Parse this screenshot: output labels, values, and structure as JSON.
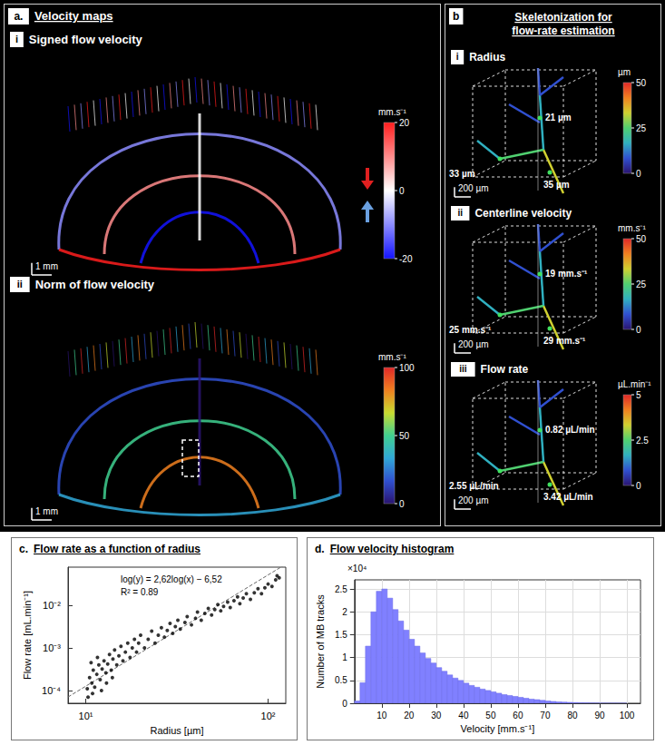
{
  "panels": {
    "a": {
      "label": "a.",
      "title": "Velocity maps",
      "maps": [
        {
          "label": "i",
          "title": "Signed flow velocity",
          "scale_bar": "1 mm",
          "colorbar": {
            "unit": "mm.s⁻¹",
            "range": [
              -20,
              20
            ],
            "ticks": [
              20,
              0,
              -20
            ],
            "colors": [
              "#1414ff",
              "#8c8cff",
              "#ffffff",
              "#ff8c8c",
              "#ff1e1e"
            ]
          }
        },
        {
          "label": "ii",
          "title": "Norm of flow velocity",
          "scale_bar": "1 mm",
          "colorbar": {
            "unit": "mm.s⁻¹",
            "range": [
              0,
              100
            ],
            "ticks": [
              0,
              50,
              100
            ],
            "colors": [
              "#2a1470",
              "#3050d0",
              "#30a8d8",
              "#40d090",
              "#c8dc30",
              "#f08020",
              "#e02828"
            ]
          }
        }
      ]
    },
    "b": {
      "label": "b",
      "title": "Skeletonization for flow-rate estimation",
      "views": [
        {
          "label": "i",
          "title": "Radius",
          "scale_bar": "200 µm",
          "annotations": [
            "21 µm",
            "33 µm",
            "35 µm"
          ],
          "colorbar": {
            "unit": "µm",
            "range": [
              0,
              50
            ],
            "ticks": [
              0,
              25,
              50
            ],
            "colors": [
              "#2a1470",
              "#3050d0",
              "#30b0c0",
              "#50d070",
              "#d0d030",
              "#f08020",
              "#e02828"
            ]
          }
        },
        {
          "label": "ii",
          "title": "Centerline velocity",
          "scale_bar": "200 µm",
          "annotations": [
            "19 mm.s⁻¹",
            "25 mm.s⁻¹",
            "29 mm.s⁻¹"
          ],
          "colorbar": {
            "unit": "mm.s⁻¹",
            "range": [
              0,
              50
            ],
            "ticks": [
              0,
              25,
              50
            ],
            "colors": [
              "#2a1470",
              "#3050d0",
              "#30b0c0",
              "#50d070",
              "#d0d030",
              "#f08020",
              "#e02828"
            ]
          }
        },
        {
          "label": "iii",
          "title": "Flow rate",
          "scale_bar": "200 µm",
          "annotations": [
            "0.82 µL/min",
            "2.55 µL/min",
            "3.42 µL/min"
          ],
          "colorbar": {
            "unit": "µL.min⁻¹",
            "range": [
              0,
              5
            ],
            "ticks": [
              0,
              2.5,
              5
            ],
            "colors": [
              "#2a1470",
              "#3050d0",
              "#30b0c0",
              "#50d070",
              "#d0d030",
              "#f08020",
              "#e02828"
            ]
          }
        }
      ]
    }
  },
  "chart_data": [
    {
      "type": "scatter",
      "label": "c.",
      "title": "Flow rate as a function of radius",
      "x_label": "Radius [µm]",
      "y_label": "Flow rate [mL.min⁻¹]",
      "log": true,
      "grid": false,
      "xlim": [
        8,
        125
      ],
      "ylim": [
        5e-05,
        0.08
      ],
      "xticks": [
        {
          "value": 10,
          "label": "10¹"
        },
        {
          "value": 100,
          "label": "10²"
        }
      ],
      "yticks": [
        {
          "value": 0.0001,
          "label": "10⁻⁴"
        },
        {
          "value": 0.001,
          "label": "10⁻³"
        },
        {
          "value": 0.01,
          "label": "10⁻²"
        }
      ],
      "color": "#000000",
      "marker": "circle",
      "x": [
        10.2,
        10.5,
        10.8,
        11,
        11.2,
        11.5,
        11.8,
        12,
        12.3,
        12.6,
        12.9,
        13.2,
        13.5,
        13.8,
        14.1,
        14.4,
        14.8,
        15.2,
        15.6,
        16,
        16.5,
        17,
        17.5,
        18,
        18.5,
        19,
        19.5,
        20,
        21,
        22,
        23,
        24,
        25,
        26,
        27,
        28,
        29,
        30,
        31,
        32,
        33,
        35,
        36,
        38,
        40,
        41,
        43,
        45,
        47,
        49,
        51,
        53,
        55,
        57,
        60,
        62,
        65,
        68,
        70,
        73,
        76,
        80,
        84,
        88,
        92,
        96,
        100,
        105,
        110,
        112,
        115,
        10.3,
        10.9,
        12.2,
        13,
        14,
        11.6,
        10.7
      ],
      "values": [
        0.00011,
        0.0002,
        0.00015,
        0.0003,
        0.00012,
        0.00024,
        0.0004,
        0.00018,
        0.00032,
        0.0005,
        0.00026,
        0.00042,
        0.0007,
        0.0003,
        0.00055,
        0.0009,
        0.0004,
        0.00065,
        0.0011,
        0.0005,
        0.0008,
        0.0013,
        0.0006,
        0.001,
        0.0016,
        0.0008,
        0.0013,
        0.002,
        0.001,
        0.0016,
        0.0025,
        0.0013,
        0.002,
        0.003,
        0.0018,
        0.0026,
        0.0038,
        0.0022,
        0.0032,
        0.0045,
        0.0028,
        0.004,
        0.0055,
        0.0035,
        0.005,
        0.007,
        0.0045,
        0.0065,
        0.0085,
        0.006,
        0.008,
        0.0105,
        0.0075,
        0.0095,
        0.012,
        0.009,
        0.013,
        0.016,
        0.011,
        0.015,
        0.019,
        0.014,
        0.02,
        0.025,
        0.019,
        0.026,
        0.032,
        0.028,
        0.04,
        0.05,
        0.045,
        7e-05,
        8.5e-05,
        0.0001,
        0.00015,
        0.0002,
        0.0006,
        0.00045
      ],
      "fit": {
        "slope": 2.62,
        "intercept": -6.52,
        "line_style": "dashed",
        "color": "#666666"
      },
      "annotations": [
        "log(y) = 2,62log(x) − 6,52",
        "R² = 0.89"
      ]
    },
    {
      "type": "histogram",
      "label": "d.",
      "title": "Flow velocity histogram",
      "x_label": "Velocity [mm.s⁻¹]",
      "y_label": "Number of MB tracks",
      "y_multiplier": "×10⁴",
      "grid": true,
      "color": "#8080ff",
      "xlim": [
        0,
        105
      ],
      "xticks": [
        10,
        20,
        30,
        40,
        50,
        60,
        70,
        80,
        90,
        100
      ],
      "ylim": [
        0,
        2.7
      ],
      "yticks": [
        0,
        0.5,
        1,
        1.5,
        2,
        2.5
      ],
      "bins": [
        0,
        2,
        4,
        6,
        8,
        10,
        12,
        14,
        16,
        18,
        20,
        22,
        24,
        26,
        28,
        30,
        32,
        34,
        36,
        38,
        40,
        42,
        44,
        46,
        48,
        50,
        52,
        54,
        56,
        58,
        60,
        62,
        64,
        66,
        68,
        70,
        72,
        74,
        76,
        78,
        80,
        82,
        84,
        86,
        88,
        90,
        92,
        94,
        96,
        98,
        100
      ],
      "values": [
        0.05,
        0.45,
        1.25,
        2.0,
        2.45,
        2.5,
        2.3,
        2.05,
        1.8,
        1.6,
        1.4,
        1.25,
        1.1,
        0.98,
        0.88,
        0.78,
        0.7,
        0.62,
        0.55,
        0.5,
        0.44,
        0.39,
        0.35,
        0.31,
        0.28,
        0.25,
        0.22,
        0.19,
        0.17,
        0.15,
        0.13,
        0.11,
        0.09,
        0.08,
        0.065,
        0.05,
        0.04,
        0.03,
        0.025,
        0.02,
        0.015,
        0.01,
        0.008,
        0.005,
        0.003,
        0.002,
        0.001,
        0.001,
        0.0005,
        0.0005
      ]
    }
  ]
}
